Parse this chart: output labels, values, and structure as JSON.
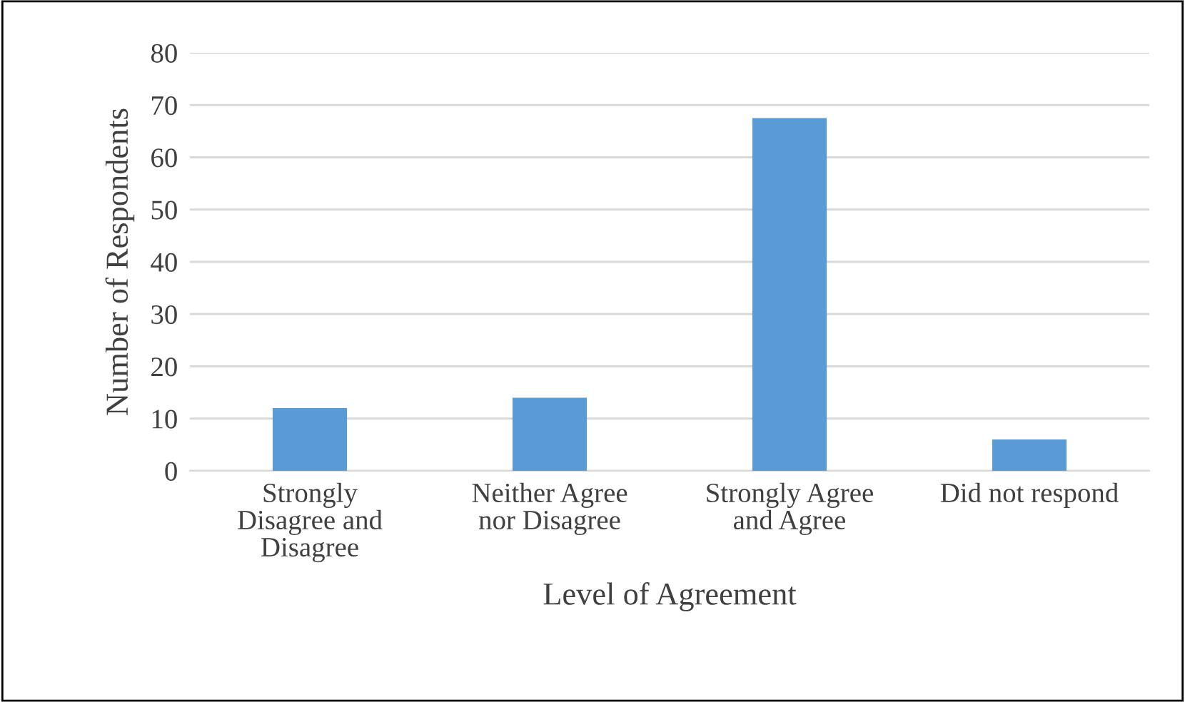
{
  "chart_data": {
    "type": "bar",
    "xlabel": "Level of Agreement",
    "ylabel": "Number of Respondents",
    "categories": [
      "Strongly\nDisagree and\nDisagree",
      "Neither Agree\nnor Disagree",
      "Strongly Agree\nand Agree",
      "Did not respond"
    ],
    "values": [
      12,
      14,
      67.5,
      6
    ],
    "color": "#5b9bd5",
    "ylim": [
      0,
      80
    ],
    "yticks": [
      0,
      10,
      20,
      30,
      40,
      50,
      60,
      70,
      80
    ],
    "grid": "y"
  }
}
